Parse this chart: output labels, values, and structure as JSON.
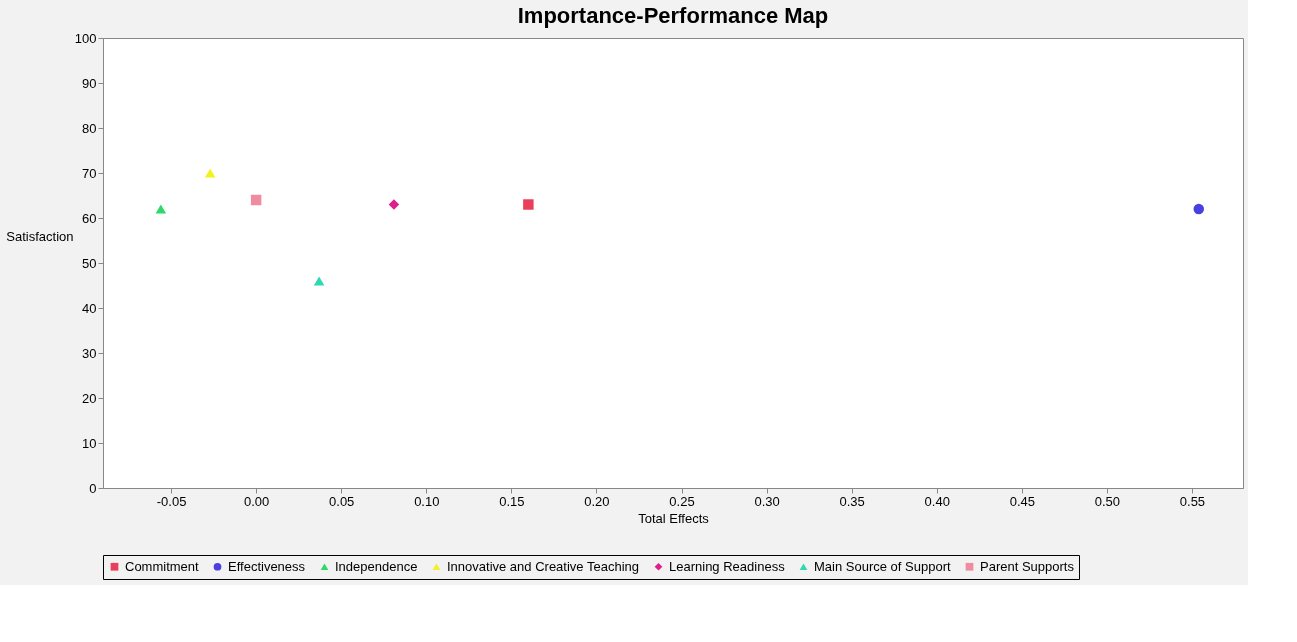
{
  "chart_data": {
    "type": "scatter",
    "title": "Importance-Performance Map",
    "xlabel": "Total Effects",
    "ylabel": "Satisfaction",
    "xlim": [
      -0.09,
      0.58
    ],
    "xticks": [
      {
        "value": -0.05,
        "label": "-0.05"
      },
      {
        "value": 0,
        "label": "0.00"
      },
      {
        "value": 0.05,
        "label": "0.05"
      },
      {
        "value": 0.1,
        "label": "0.10"
      },
      {
        "value": 0.15,
        "label": "0.15"
      },
      {
        "value": 0.2,
        "label": "0.20"
      },
      {
        "value": 0.25,
        "label": "0.25"
      },
      {
        "value": 0.3,
        "label": "0.30"
      },
      {
        "value": 0.35,
        "label": "0.35"
      },
      {
        "value": 0.4,
        "label": "0.40"
      },
      {
        "value": 0.45,
        "label": "0.45"
      },
      {
        "value": 0.5,
        "label": "0.50"
      },
      {
        "value": 0.55,
        "label": "0.55"
      }
    ],
    "ylim": [
      0,
      100
    ],
    "yticks": [
      0,
      10,
      20,
      30,
      40,
      50,
      60,
      70,
      80,
      90,
      100
    ],
    "grid": false,
    "legend": "bottom",
    "series": [
      {
        "name": "Commitment",
        "color": "#e8405a",
        "marker": "square",
        "x": [
          0.16
        ],
        "values": [
          63
        ]
      },
      {
        "name": "Effectiveness",
        "color": "#4a3fe0",
        "marker": "circle",
        "x": [
          0.554
        ],
        "values": [
          62
        ]
      },
      {
        "name": "Independence",
        "color": "#2fd86a",
        "marker": "triangle",
        "x": [
          -0.056
        ],
        "values": [
          62
        ]
      },
      {
        "name": "Innovative and Creative Teaching",
        "color": "#f5f020",
        "marker": "triangle",
        "x": [
          -0.027
        ],
        "values": [
          70
        ]
      },
      {
        "name": "Learning Readiness",
        "color": "#e0208a",
        "marker": "diamond",
        "x": [
          0.081
        ],
        "values": [
          63
        ]
      },
      {
        "name": "Main Source of Support",
        "color": "#30d8b0",
        "marker": "triangle",
        "x": [
          0.037
        ],
        "values": [
          46
        ]
      },
      {
        "name": "Parent Supports",
        "color": "#f08ca0",
        "marker": "square",
        "x": [
          0.0
        ],
        "values": [
          64
        ]
      }
    ]
  }
}
